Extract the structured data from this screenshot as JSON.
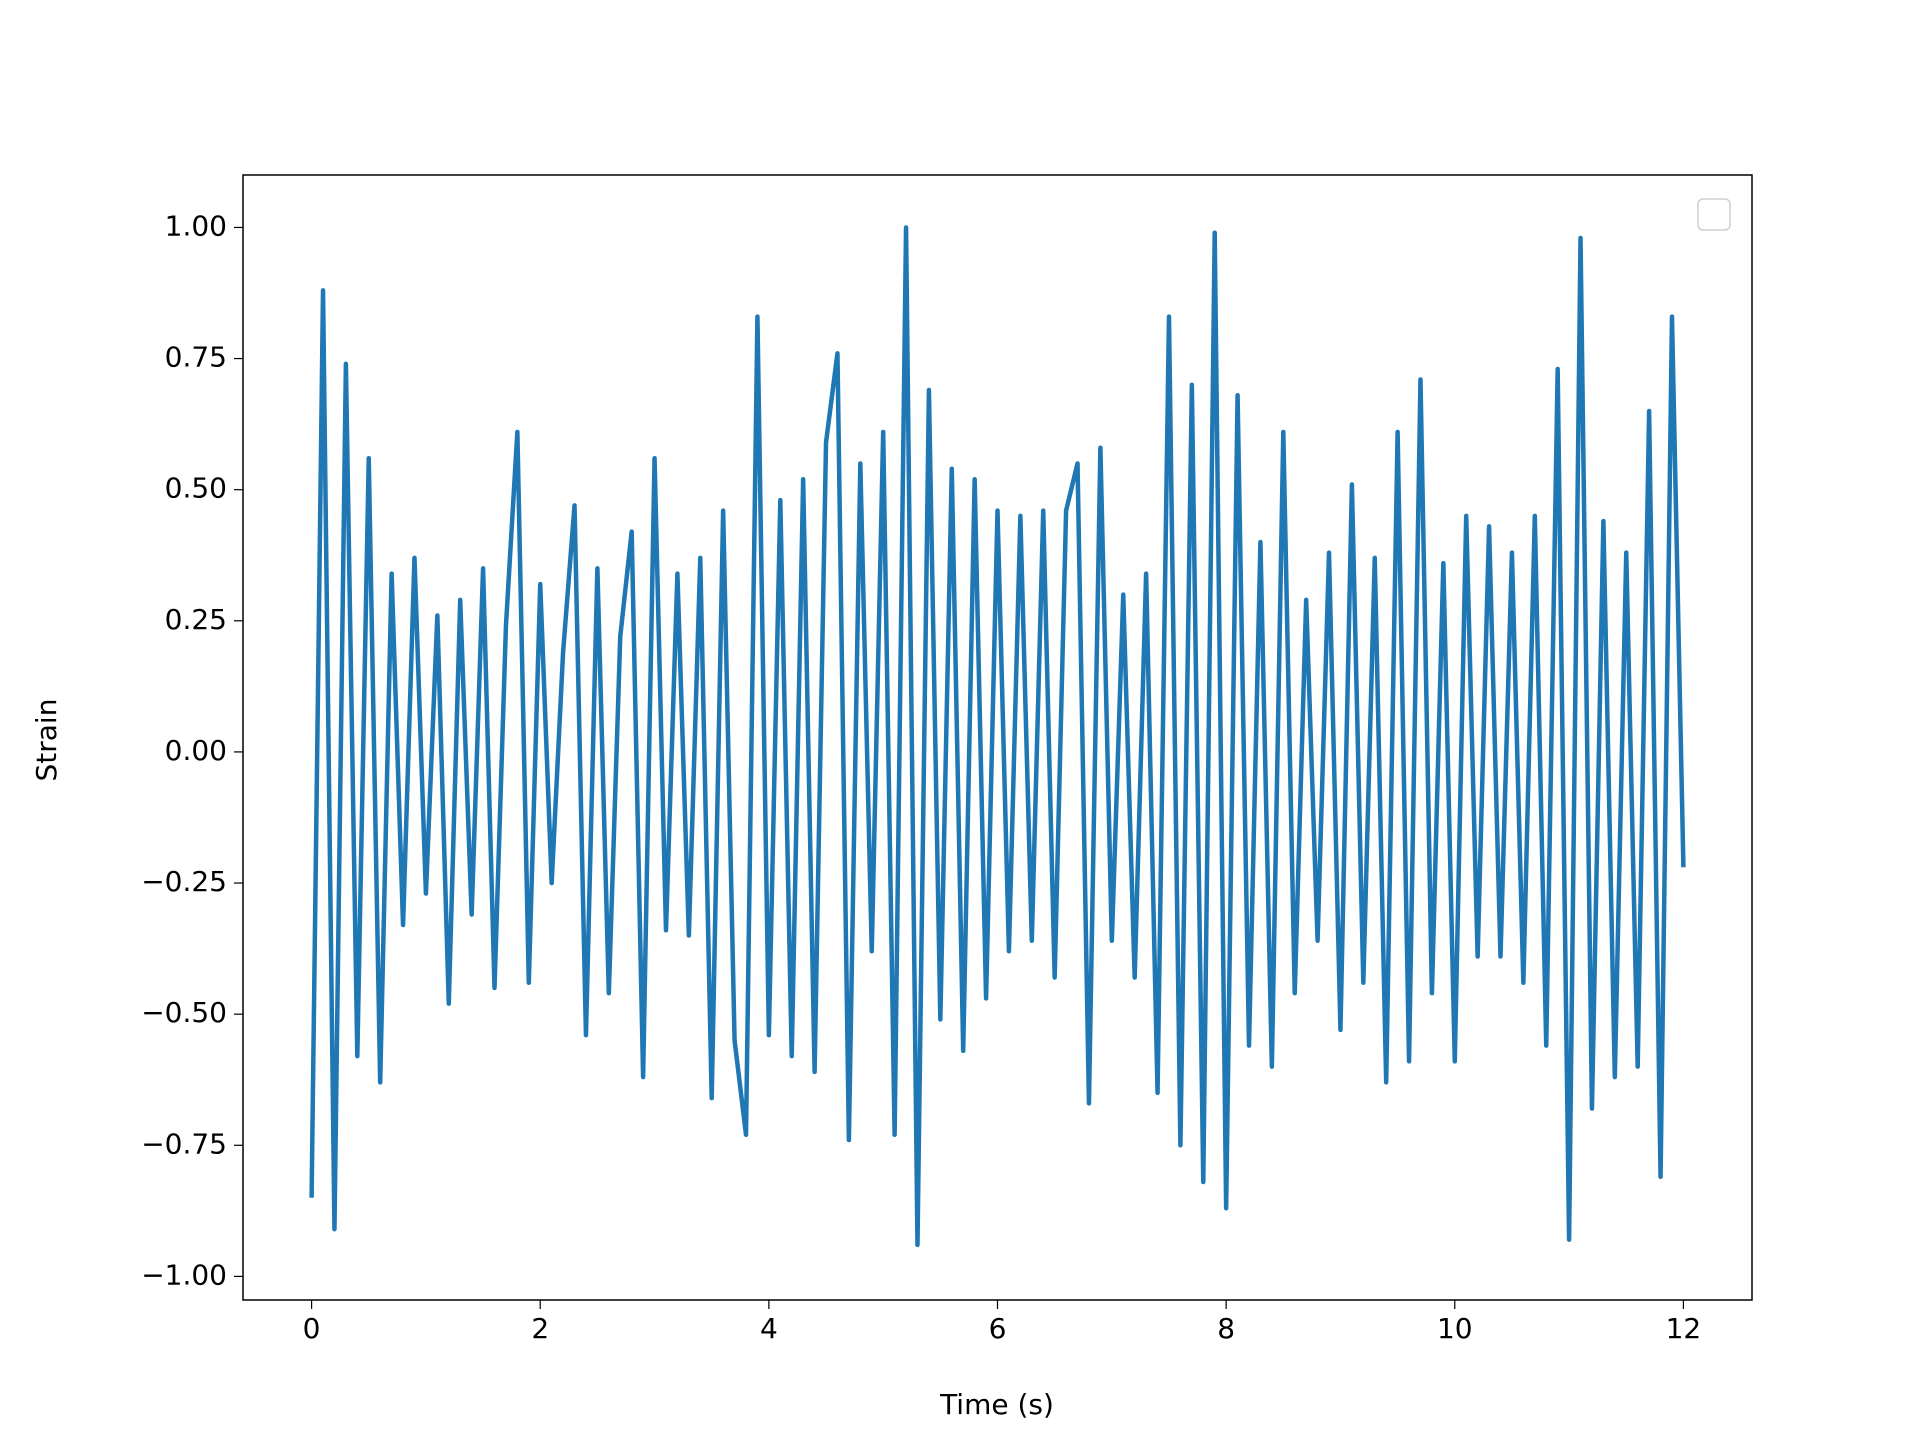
{
  "chart_data": {
    "type": "line",
    "x_label": "Time (s)",
    "y_label": "Strain",
    "x": [
      0,
      0.1,
      0.2,
      0.3,
      0.4,
      0.5,
      0.6,
      0.7,
      0.8,
      0.9,
      1,
      1.1,
      1.2,
      1.3,
      1.4,
      1.5,
      1.6,
      1.7,
      1.8,
      1.9,
      2,
      2.1,
      2.2,
      2.3,
      2.4,
      2.5,
      2.6,
      2.7,
      2.8,
      2.9,
      3,
      3.1,
      3.2,
      3.3,
      3.4,
      3.5,
      3.6,
      3.7,
      3.8,
      3.9,
      4,
      4.1,
      4.2,
      4.3,
      4.4,
      4.5,
      4.6,
      4.7,
      4.8,
      4.9,
      5,
      5.1,
      5.2,
      5.3,
      5.4,
      5.5,
      5.6,
      5.7,
      5.8,
      5.9,
      6,
      6.1,
      6.2,
      6.3,
      6.4,
      6.5,
      6.6,
      6.7,
      6.8,
      6.9,
      7,
      7.1,
      7.2,
      7.3,
      7.4,
      7.5,
      7.6,
      7.7,
      7.8,
      7.9,
      8,
      8.1,
      8.2,
      8.3,
      8.4,
      8.5,
      8.6,
      8.7,
      8.8,
      8.9,
      9,
      9.1,
      9.2,
      9.3,
      9.4,
      9.5,
      9.6,
      9.7,
      9.8,
      9.9,
      10,
      10.1,
      10.2,
      10.3,
      10.4,
      10.5,
      10.6,
      10.7,
      10.8,
      10.9,
      11,
      11.1,
      11.2,
      11.3,
      11.4,
      11.5,
      11.6,
      11.7,
      11.8,
      11.9,
      12
    ],
    "values": [
      -0.85,
      0.88,
      -0.91,
      0.74,
      -0.58,
      0.56,
      -0.63,
      0.34,
      -0.33,
      0.37,
      -0.27,
      0.26,
      -0.48,
      0.29,
      -0.31,
      0.35,
      -0.45,
      0.24,
      0.61,
      -0.44,
      0.32,
      -0.25,
      0.19,
      0.47,
      -0.54,
      0.35,
      -0.46,
      0.22,
      0.42,
      -0.62,
      0.56,
      -0.34,
      0.34,
      -0.35,
      0.37,
      -0.66,
      0.46,
      -0.55,
      -0.73,
      0.83,
      -0.54,
      0.48,
      -0.58,
      0.52,
      -0.61,
      0.59,
      0.76,
      -0.74,
      0.55,
      -0.38,
      0.61,
      -0.73,
      1.0,
      -0.94,
      0.69,
      -0.51,
      0.54,
      -0.57,
      0.52,
      -0.47,
      0.46,
      -0.38,
      0.45,
      -0.36,
      0.46,
      -0.43,
      0.46,
      0.55,
      -0.67,
      0.58,
      -0.36,
      0.3,
      -0.43,
      0.34,
      -0.65,
      0.83,
      -0.75,
      0.7,
      -0.82,
      0.99,
      -0.87,
      0.68,
      -0.56,
      0.4,
      -0.6,
      0.61,
      -0.46,
      0.29,
      -0.36,
      0.38,
      -0.53,
      0.51,
      -0.44,
      0.37,
      -0.63,
      0.61,
      -0.59,
      0.71,
      -0.46,
      0.36,
      -0.59,
      0.45,
      -0.39,
      0.43,
      -0.39,
      0.38,
      -0.44,
      0.45,
      -0.56,
      0.73,
      -0.93,
      0.98,
      -0.68,
      0.44,
      -0.62,
      0.38,
      -0.6,
      0.65,
      -0.81,
      0.83,
      -0.22
    ],
    "color": "#1f77b4",
    "xlim": [
      -0.6,
      12.6
    ],
    "xticks": [
      0,
      2,
      4,
      6,
      8,
      10,
      12
    ],
    "ylim": [
      -1.045,
      1.1
    ],
    "yticks": [
      {
        "value": -1,
        "label": "−1.00"
      },
      {
        "value": -0.75,
        "label": "−0.75"
      },
      {
        "value": -0.5,
        "label": "−0.50"
      },
      {
        "value": -0.25,
        "label": "−0.25"
      },
      {
        "value": 0,
        "label": "0.00"
      },
      {
        "value": 0.25,
        "label": "0.25"
      },
      {
        "value": 0.5,
        "label": "0.50"
      },
      {
        "value": 0.75,
        "label": "0.75"
      },
      {
        "value": 1,
        "label": "1.00"
      }
    ]
  }
}
